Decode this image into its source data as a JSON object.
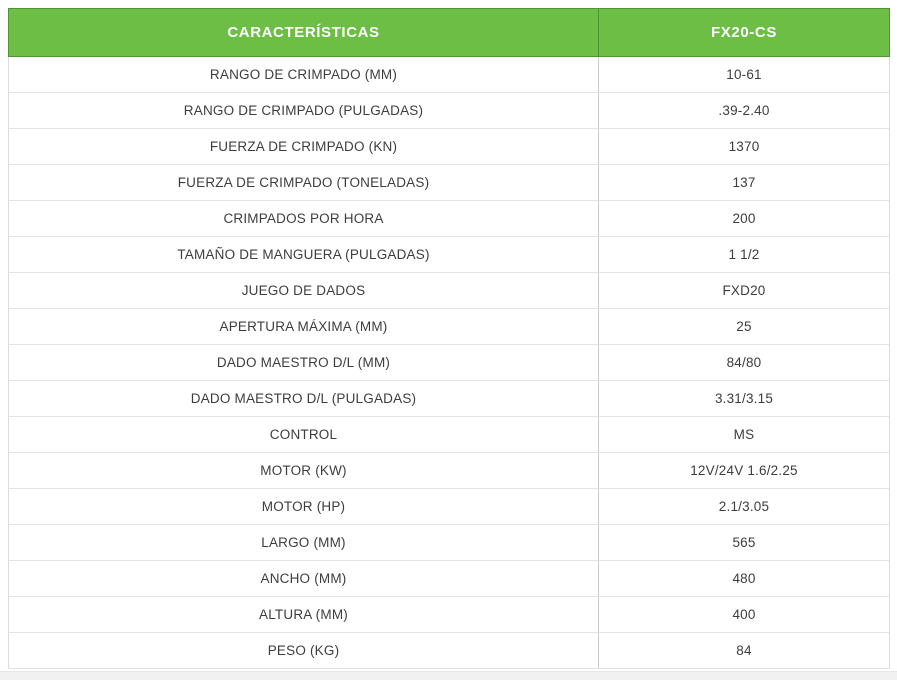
{
  "table": {
    "colors": {
      "header_bg": "#6cbe45",
      "header_border": "#4f9434",
      "header_text": "#ffffff",
      "row_text": "#3d3d3d",
      "bottom_band_bg": "#f1f1f1"
    },
    "header": {
      "col1": "CARACTERÍSTICAS",
      "col2": "FX20-CS"
    },
    "rows": [
      {
        "label": "RANGO DE CRIMPADO (MM)",
        "value": "10-61"
      },
      {
        "label": "RANGO DE CRIMPADO (PULGADAS)",
        "value": ".39-2.40"
      },
      {
        "label": "FUERZA DE CRIMPADO (KN)",
        "value": "1370"
      },
      {
        "label": "FUERZA DE CRIMPADO (TONELADAS)",
        "value": "137"
      },
      {
        "label": "CRIMPADOS POR HORA",
        "value": "200"
      },
      {
        "label": "TAMAÑO DE MANGUERA (PULGADAS)",
        "value": "1 1/2"
      },
      {
        "label": "JUEGO DE DADOS",
        "value": "FXD20"
      },
      {
        "label": "APERTURA MÁXIMA (MM)",
        "value": "25"
      },
      {
        "label": "DADO MAESTRO D/L (MM)",
        "value": "84/80"
      },
      {
        "label": "DADO MAESTRO D/L (PULGADAS)",
        "value": "3.31/3.15"
      },
      {
        "label": "CONTROL",
        "value": "MS"
      },
      {
        "label": "MOTOR (KW)",
        "value": "12V/24V 1.6/2.25"
      },
      {
        "label": "MOTOR (HP)",
        "value": "2.1/3.05"
      },
      {
        "label": "LARGO (MM)",
        "value": "565"
      },
      {
        "label": "ANCHO (MM)",
        "value": "480"
      },
      {
        "label": "ALTURA (MM)",
        "value": "400"
      },
      {
        "label": "PESO (KG)",
        "value": "84"
      }
    ]
  }
}
